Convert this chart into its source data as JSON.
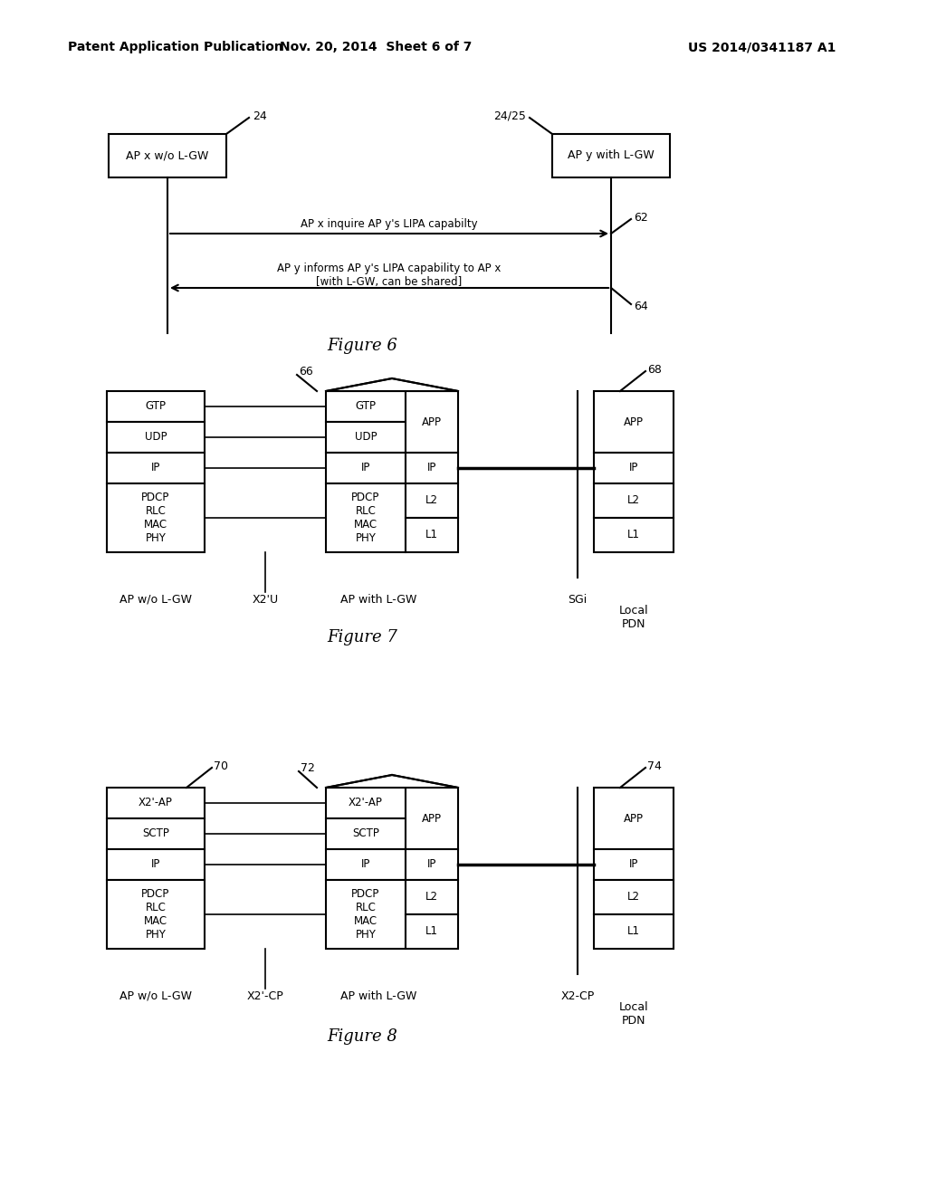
{
  "bg_color": "#ffffff",
  "header_left": "Patent Application Publication",
  "header_mid": "Nov. 20, 2014  Sheet 6 of 7",
  "header_right": "US 2014/0341187 A1",
  "fig6": {
    "title": "Figure 6",
    "box_left_label": "AP x w/o L-GW",
    "box_right_label": "AP y with L-GW",
    "num_left": "24",
    "num_right": "24/25",
    "arrow1_label": "AP x inquire AP y's LIPA capabilty",
    "arrow1_num": "62",
    "arrow2_label": "AP y informs AP y's LIPA capability to AP x\n[with L-GW, can be shared]",
    "arrow2_num": "64"
  },
  "fig7": {
    "title": "Figure 7",
    "num_left": "66",
    "num_right": "68",
    "left_box_label": "AP w/o L-GW",
    "mid_label": "X2'U",
    "center_box_label": "AP with L-GW",
    "sgi_label": "SGi",
    "right_box_label": "Local\nPDN",
    "left_layers": [
      "GTP",
      "UDP",
      "IP",
      "PDCP\nRLC\nMAC\nPHY"
    ],
    "center_left_layers": [
      "GTP",
      "UDP",
      "IP",
      "PDCP\nRLC\nMAC\nPHY"
    ],
    "center_right_layers": [
      "APP",
      "IP",
      "L2",
      "L1"
    ],
    "right_layers": [
      "APP",
      "IP",
      "L2",
      "L1"
    ]
  },
  "fig8": {
    "title": "Figure 8",
    "num_left": "70",
    "num_mid": "72",
    "num_right": "74",
    "left_box_label": "AP w/o L-GW",
    "mid_label": "X2'-CP",
    "center_box_label": "AP with L-GW",
    "x2cp_label": "X2-CP",
    "right_box_label": "Local\nPDN",
    "left_layers": [
      "X2'-AP",
      "SCTP",
      "IP",
      "PDCP\nRLC\nMAC\nPHY"
    ],
    "center_left_layers": [
      "X2'-AP",
      "SCTP",
      "IP",
      "PDCP\nRLC\nMAC\nPHY"
    ],
    "center_right_layers": [
      "APP",
      "IP",
      "L2",
      "L1"
    ],
    "right_layers": [
      "APP",
      "IP",
      "L2",
      "L1"
    ]
  }
}
